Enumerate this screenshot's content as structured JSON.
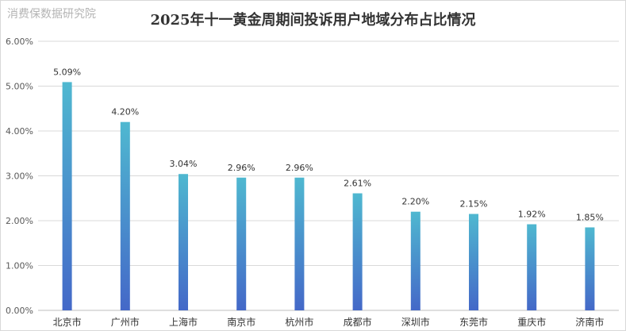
{
  "watermark": "消费保数据研究院",
  "chart_data": {
    "type": "bar",
    "title": "2025年十一黄金周期间投诉用户地域分布占比情况",
    "categories": [
      "北京市",
      "广州市",
      "上海市",
      "南京市",
      "杭州市",
      "成都市",
      "深圳市",
      "东莞市",
      "重庆市",
      "济南市"
    ],
    "values": [
      5.09,
      4.2,
      3.04,
      2.96,
      2.96,
      2.61,
      2.2,
      2.15,
      1.92,
      1.85
    ],
    "data_labels": [
      "5.09%",
      "4.20%",
      "3.04%",
      "2.96%",
      "2.96%",
      "2.61%",
      "2.20%",
      "2.15%",
      "1.92%",
      "1.85%"
    ],
    "ylim": [
      0,
      6
    ],
    "yticks": [
      0,
      1,
      2,
      3,
      4,
      5,
      6
    ],
    "ytick_labels": [
      "0.00%",
      "1.00%",
      "2.00%",
      "3.00%",
      "4.00%",
      "5.00%",
      "6.00%"
    ],
    "xlabel": "",
    "ylabel": "",
    "grid": true,
    "legend": "none",
    "colors": {
      "bar_top": "#4fb8d0",
      "bar_bottom": "#4468c8",
      "grid": "#d9d9d9",
      "axis": "#bfbfbf"
    }
  }
}
